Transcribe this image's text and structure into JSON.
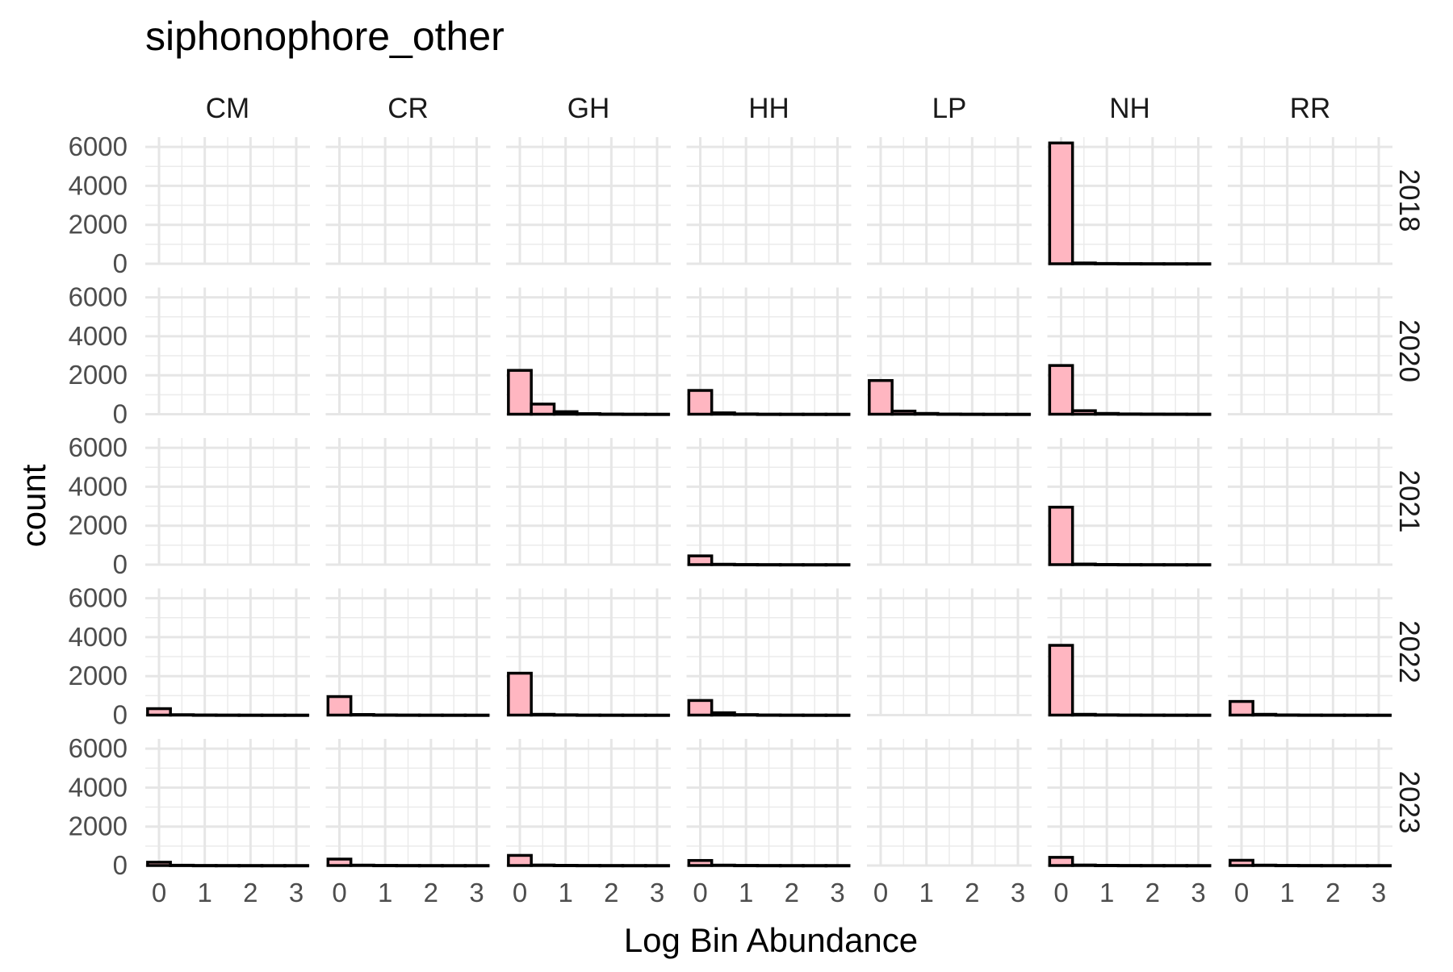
{
  "chart_data": {
    "type": "bar",
    "title": "siphonophore_other",
    "xlabel": "Log Bin Abundance",
    "ylabel": "count",
    "facet_columns": [
      "CM",
      "CR",
      "GH",
      "HH",
      "LP",
      "NH",
      "RR"
    ],
    "facet_rows": [
      "2018",
      "2020",
      "2021",
      "2022",
      "2023"
    ],
    "x_ticks": [
      0,
      1,
      2,
      3
    ],
    "y_ticks": [
      0,
      2000,
      4000,
      6000
    ],
    "xlim": [
      -0.3,
      3.3
    ],
    "ylim": [
      0,
      6500
    ],
    "bin_width": 0.5,
    "bin_centers": [
      0,
      0.5,
      1,
      1.5,
      2,
      2.5,
      3
    ],
    "grid": true,
    "legend": "none",
    "bar_fill": "#ffb6c1",
    "bar_outline": "#000000",
    "panels": [
      {
        "row": "2018",
        "col": "NH",
        "values": [
          6200,
          40,
          15,
          8,
          5,
          3,
          2
        ]
      },
      {
        "row": "2020",
        "col": "GH",
        "values": [
          2250,
          520,
          130,
          30,
          10,
          5,
          2
        ]
      },
      {
        "row": "2020",
        "col": "HH",
        "values": [
          1220,
          70,
          15,
          5,
          3,
          2,
          1
        ]
      },
      {
        "row": "2020",
        "col": "LP",
        "values": [
          1730,
          160,
          40,
          10,
          5,
          2,
          1
        ]
      },
      {
        "row": "2020",
        "col": "NH",
        "values": [
          2500,
          180,
          40,
          15,
          10,
          8,
          5
        ]
      },
      {
        "row": "2021",
        "col": "HH",
        "values": [
          450,
          20,
          8,
          4,
          2,
          1,
          1
        ]
      },
      {
        "row": "2021",
        "col": "NH",
        "values": [
          2950,
          30,
          10,
          5,
          3,
          2,
          1
        ]
      },
      {
        "row": "2022",
        "col": "CM",
        "values": [
          330,
          20,
          8,
          4,
          2,
          1,
          1
        ]
      },
      {
        "row": "2022",
        "col": "CR",
        "values": [
          950,
          30,
          10,
          5,
          3,
          2,
          1
        ]
      },
      {
        "row": "2022",
        "col": "GH",
        "values": [
          2150,
          40,
          15,
          5,
          3,
          2,
          1
        ]
      },
      {
        "row": "2022",
        "col": "HH",
        "values": [
          750,
          120,
          25,
          8,
          4,
          2,
          1
        ]
      },
      {
        "row": "2022",
        "col": "NH",
        "values": [
          3580,
          40,
          15,
          8,
          5,
          3,
          2
        ]
      },
      {
        "row": "2022",
        "col": "RR",
        "values": [
          700,
          40,
          10,
          5,
          3,
          2,
          1
        ]
      },
      {
        "row": "2023",
        "col": "CM",
        "values": [
          170,
          15,
          5,
          3,
          2,
          1,
          1
        ]
      },
      {
        "row": "2023",
        "col": "CR",
        "values": [
          330,
          20,
          8,
          4,
          2,
          1,
          1
        ]
      },
      {
        "row": "2023",
        "col": "GH",
        "values": [
          520,
          25,
          10,
          5,
          3,
          2,
          1
        ]
      },
      {
        "row": "2023",
        "col": "HH",
        "values": [
          260,
          20,
          8,
          4,
          2,
          1,
          1
        ]
      },
      {
        "row": "2023",
        "col": "NH",
        "values": [
          420,
          25,
          10,
          5,
          3,
          2,
          1
        ]
      },
      {
        "row": "2023",
        "col": "RR",
        "values": [
          270,
          20,
          8,
          4,
          2,
          1,
          1
        ]
      }
    ]
  }
}
